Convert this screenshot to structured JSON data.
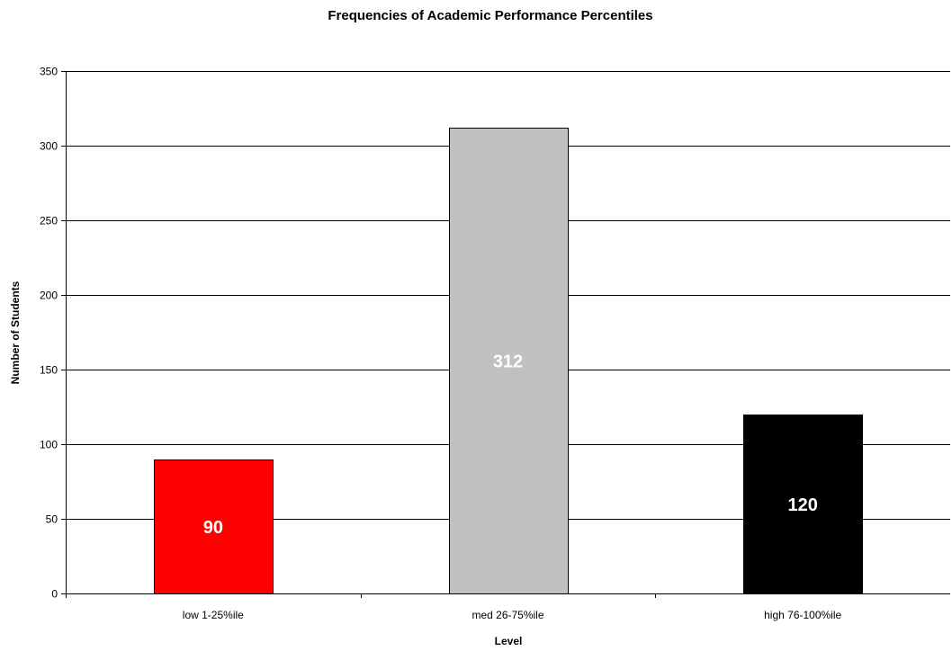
{
  "chart_data": {
    "type": "bar",
    "title": "Frequencies of Academic Performance Percentiles",
    "xlabel": "Level",
    "ylabel": "Number of Students",
    "categories": [
      "low 1-25%ile",
      "med 26-75%ile",
      "high 76-100%ile"
    ],
    "values": [
      90,
      312,
      120
    ],
    "bar_colors": [
      "#ff0000",
      "#c0c0c0",
      "#000000"
    ],
    "data_label_colors": [
      "#ffffff",
      "#ffffff",
      "#ffffff"
    ],
    "ylim": [
      0,
      350
    ],
    "yticks": [
      0,
      50,
      100,
      150,
      200,
      250,
      300,
      350
    ],
    "grid": true,
    "legend": "none"
  }
}
